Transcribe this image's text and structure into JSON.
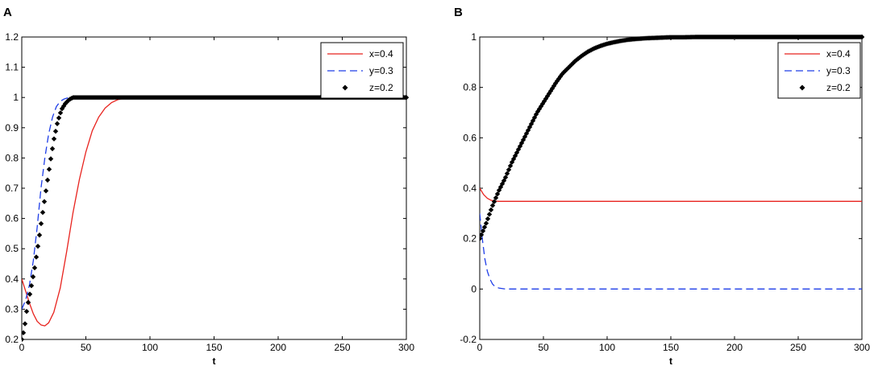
{
  "chart_data": [
    {
      "panel_label": "A",
      "type": "line",
      "xlabel": "t",
      "ylabel": "",
      "xlim": [
        0,
        300
      ],
      "ylim": [
        0.2,
        1.2
      ],
      "xticks": [
        "0",
        "50",
        "100",
        "150",
        "200",
        "250",
        "300"
      ],
      "yticks": [
        "0.2",
        "0.3",
        "0.4",
        "0.5",
        "0.6",
        "0.7",
        "0.8",
        "0.9",
        "1",
        "1.1",
        "1.2"
      ],
      "grid": false,
      "legend_position": "top-right",
      "series": [
        {
          "name": "x=0.4",
          "color": "#e8231e",
          "style": "solid",
          "x": [
            0,
            3,
            6,
            9,
            12,
            15,
            18,
            21,
            25,
            30,
            35,
            40,
            45,
            50,
            55,
            60,
            65,
            70,
            75,
            80,
            90,
            100,
            150,
            200,
            250,
            300
          ],
          "y": [
            0.4,
            0.36,
            0.32,
            0.285,
            0.26,
            0.248,
            0.245,
            0.255,
            0.29,
            0.37,
            0.49,
            0.62,
            0.73,
            0.82,
            0.89,
            0.935,
            0.965,
            0.983,
            0.993,
            0.998,
            1.0,
            1.0,
            1.0,
            1.0,
            1.0,
            1.0
          ]
        },
        {
          "name": "y=0.3",
          "color": "#1f3ee8",
          "style": "dashed",
          "x": [
            0,
            3,
            6,
            9,
            12,
            15,
            18,
            21,
            24,
            27,
            30,
            33,
            36,
            40,
            50,
            100,
            150,
            200,
            250,
            300
          ],
          "y": [
            0.3,
            0.33,
            0.38,
            0.46,
            0.57,
            0.7,
            0.8,
            0.88,
            0.935,
            0.97,
            0.987,
            0.995,
            0.999,
            1.0,
            1.0,
            1.0,
            1.0,
            1.0,
            1.0,
            1.0
          ]
        },
        {
          "name": "z=0.2",
          "color": "#000000",
          "style": "markers",
          "x": [
            0,
            2,
            4,
            7,
            10,
            13,
            16,
            19,
            22,
            25,
            28,
            31,
            34,
            37,
            40,
            50,
            100,
            150,
            200,
            250,
            300
          ],
          "y": [
            0.2,
            0.235,
            0.3,
            0.365,
            0.435,
            0.52,
            0.61,
            0.695,
            0.78,
            0.86,
            0.92,
            0.96,
            0.98,
            0.993,
            1.0,
            1.0,
            1.0,
            1.0,
            1.0,
            1.0,
            1.0
          ]
        }
      ]
    },
    {
      "panel_label": "B",
      "type": "line",
      "xlabel": "t",
      "ylabel": "",
      "xlim": [
        0,
        300
      ],
      "ylim": [
        -0.2,
        1.0
      ],
      "xticks": [
        "0",
        "50",
        "100",
        "150",
        "200",
        "250",
        "300"
      ],
      "yticks": [
        "-0.2",
        "0",
        "0.2",
        "0.4",
        "0.6",
        "0.8",
        "1"
      ],
      "grid": false,
      "legend_position": "top-right",
      "series": [
        {
          "name": "x=0.4",
          "color": "#e8231e",
          "style": "solid",
          "x": [
            0,
            3,
            6,
            9,
            12,
            15,
            20,
            50,
            100,
            150,
            200,
            250,
            300
          ],
          "y": [
            0.4,
            0.375,
            0.36,
            0.352,
            0.349,
            0.348,
            0.348,
            0.348,
            0.348,
            0.348,
            0.348,
            0.348,
            0.348
          ]
        },
        {
          "name": "y=0.3",
          "color": "#1f3ee8",
          "style": "dashed",
          "x": [
            0,
            2,
            4,
            6,
            8,
            10,
            12,
            15,
            20,
            50,
            100,
            150,
            200,
            250,
            300
          ],
          "y": [
            0.3,
            0.2,
            0.12,
            0.07,
            0.04,
            0.02,
            0.01,
            0.004,
            0.0,
            0.0,
            0.0,
            0.0,
            0.0,
            0.0,
            0.0
          ]
        },
        {
          "name": "z=0.2",
          "color": "#000000",
          "style": "markers",
          "x": [
            0,
            5,
            10,
            15,
            20,
            25,
            30,
            35,
            40,
            45,
            50,
            55,
            60,
            65,
            70,
            75,
            80,
            85,
            90,
            95,
            100,
            105,
            110,
            115,
            120,
            125,
            130,
            135,
            140,
            145,
            150,
            160,
            170,
            180,
            200,
            220,
            240,
            260,
            280,
            300
          ],
          "y": [
            0.2,
            0.26,
            0.33,
            0.39,
            0.44,
            0.5,
            0.55,
            0.6,
            0.65,
            0.7,
            0.74,
            0.78,
            0.82,
            0.855,
            0.88,
            0.905,
            0.925,
            0.942,
            0.955,
            0.965,
            0.973,
            0.979,
            0.984,
            0.988,
            0.991,
            0.993,
            0.995,
            0.996,
            0.997,
            0.998,
            0.999,
            0.999,
            1.0,
            1.0,
            1.0,
            1.0,
            1.0,
            1.0,
            1.0,
            1.0
          ]
        }
      ]
    }
  ]
}
